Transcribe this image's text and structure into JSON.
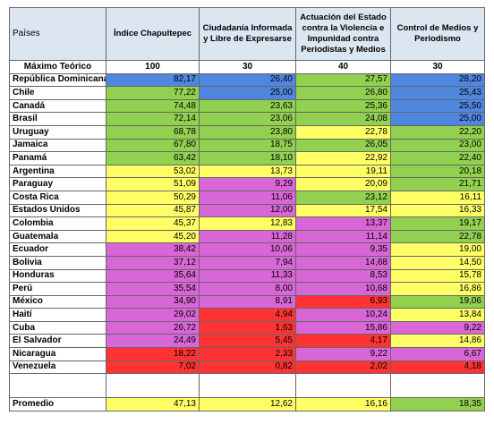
{
  "header": {
    "columns": [
      "Países",
      "Índice Chapultepec",
      "Ciudadanía Informada y Libre de Expresarse",
      "Actuación del Estado contra la Violencia e Impunidad contra Periodistas y Medios",
      "Control de Medios y Periodismo"
    ]
  },
  "max_row": {
    "label": "Máximo Teórico",
    "values": [
      "100",
      "30",
      "40",
      "30"
    ]
  },
  "rows": [
    {
      "country": "República Dominicana",
      "values": [
        "82,17",
        "26,40",
        "27,57",
        "28,20"
      ],
      "colors": [
        "#4f86e0",
        "#4f86e0",
        "#92d050",
        "#4f86e0"
      ]
    },
    {
      "country": "Chile",
      "values": [
        "77,22",
        "25,00",
        "26,80",
        "25,43"
      ],
      "colors": [
        "#92d050",
        "#4f86e0",
        "#92d050",
        "#4f86e0"
      ]
    },
    {
      "country": "Canadá",
      "values": [
        "74,48",
        "23,63",
        "25,36",
        "25,50"
      ],
      "colors": [
        "#92d050",
        "#92d050",
        "#92d050",
        "#4f86e0"
      ]
    },
    {
      "country": "Brasil",
      "values": [
        "72,14",
        "23,06",
        "24,08",
        "25,00"
      ],
      "colors": [
        "#92d050",
        "#92d050",
        "#92d050",
        "#4f86e0"
      ]
    },
    {
      "country": "Uruguay",
      "values": [
        "68,78",
        "23,80",
        "22,78",
        "22,20"
      ],
      "colors": [
        "#92d050",
        "#92d050",
        "#ffff66",
        "#92d050"
      ]
    },
    {
      "country": "Jamaica",
      "values": [
        "67,80",
        "18,75",
        "26,05",
        "23,00"
      ],
      "colors": [
        "#92d050",
        "#92d050",
        "#92d050",
        "#92d050"
      ]
    },
    {
      "country": "Panamá",
      "values": [
        "63,42",
        "18,10",
        "22,92",
        "22,40"
      ],
      "colors": [
        "#92d050",
        "#92d050",
        "#ffff66",
        "#92d050"
      ]
    },
    {
      "country": "Argentina",
      "values": [
        "53,02",
        "13,73",
        "19,11",
        "20,18"
      ],
      "colors": [
        "#ffff66",
        "#ffff66",
        "#ffff66",
        "#92d050"
      ]
    },
    {
      "country": "Paraguay",
      "values": [
        "51,09",
        "9,29",
        "20,09",
        "21,71"
      ],
      "colors": [
        "#ffff66",
        "#d966d6",
        "#ffff66",
        "#92d050"
      ]
    },
    {
      "country": "Costa Rica",
      "values": [
        "50,29",
        "11,06",
        "23,12",
        "16,11"
      ],
      "colors": [
        "#ffff66",
        "#d966d6",
        "#92d050",
        "#ffff66"
      ]
    },
    {
      "country": "Estados Unidos",
      "values": [
        "45,87",
        "12,00",
        "17,54",
        "16,33"
      ],
      "colors": [
        "#ffff66",
        "#d966d6",
        "#ffff66",
        "#ffff66"
      ]
    },
    {
      "country": "Colombia",
      "values": [
        "45,37",
        "12,83",
        "13,37",
        "19,17"
      ],
      "colors": [
        "#ffff66",
        "#ffff66",
        "#d966d6",
        "#92d050"
      ]
    },
    {
      "country": "Guatemala",
      "values": [
        "45,20",
        "11,28",
        "11,14",
        "22,78"
      ],
      "colors": [
        "#ffff66",
        "#d966d6",
        "#d966d6",
        "#92d050"
      ]
    },
    {
      "country": "Ecuador",
      "values": [
        "38,42",
        "10,06",
        "9,35",
        "19,00"
      ],
      "colors": [
        "#d966d6",
        "#d966d6",
        "#d966d6",
        "#ffff66"
      ]
    },
    {
      "country": "Bolivia",
      "values": [
        "37,12",
        "7,94",
        "14,68",
        "14,50"
      ],
      "colors": [
        "#d966d6",
        "#d966d6",
        "#d966d6",
        "#ffff66"
      ]
    },
    {
      "country": "Honduras",
      "values": [
        "35,64",
        "11,33",
        "8,53",
        "15,78"
      ],
      "colors": [
        "#d966d6",
        "#d966d6",
        "#d966d6",
        "#ffff66"
      ]
    },
    {
      "country": "Perú",
      "values": [
        "35,54",
        "8,00",
        "10,68",
        "16,86"
      ],
      "colors": [
        "#d966d6",
        "#d966d6",
        "#d966d6",
        "#ffff66"
      ]
    },
    {
      "country": "México",
      "values": [
        "34,90",
        "8,91",
        "6,93",
        "19,06"
      ],
      "colors": [
        "#d966d6",
        "#d966d6",
        "#ff3333",
        "#92d050"
      ]
    },
    {
      "country": "Haití",
      "values": [
        "29,02",
        "4,94",
        "10,24",
        "13,84"
      ],
      "colors": [
        "#d966d6",
        "#ff3333",
        "#d966d6",
        "#ffff66"
      ]
    },
    {
      "country": "Cuba",
      "values": [
        "26,72",
        "1,63",
        "15,86",
        "9,22"
      ],
      "colors": [
        "#d966d6",
        "#ff3333",
        "#d966d6",
        "#d966d6"
      ]
    },
    {
      "country": "El Salvador",
      "values": [
        "24,49",
        "5,45",
        "4,17",
        "14,86"
      ],
      "colors": [
        "#d966d6",
        "#ff3333",
        "#ff3333",
        "#ffff66"
      ]
    },
    {
      "country": "Nicaragua",
      "values": [
        "18,22",
        "2,33",
        "9,22",
        "6,67"
      ],
      "colors": [
        "#ff3333",
        "#ff3333",
        "#d966d6",
        "#d966d6"
      ]
    },
    {
      "country": "Venezuela",
      "values": [
        "7,02",
        "0,82",
        "2,02",
        "4,18"
      ],
      "colors": [
        "#ff3333",
        "#ff3333",
        "#ff3333",
        "#ff3333"
      ]
    }
  ],
  "average": {
    "label": "Promedio",
    "values": [
      "47,13",
      "12,62",
      "16,16",
      "18,35"
    ],
    "colors": [
      "#ffff66",
      "#ffff66",
      "#ffff66",
      "#92d050"
    ]
  }
}
